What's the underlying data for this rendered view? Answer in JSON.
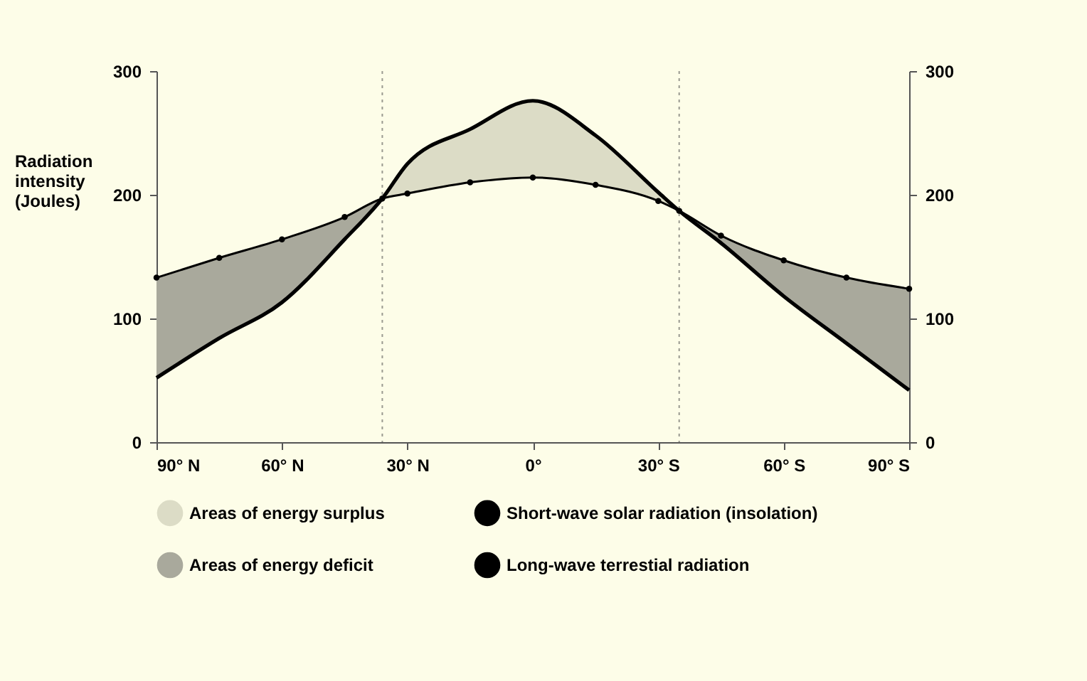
{
  "chart_data": {
    "type": "line",
    "ylabel": "Radiation intensity (Joules)",
    "xlim": [
      90,
      -90
    ],
    "xticks": [
      {
        "value": 90,
        "label": "90° N"
      },
      {
        "value": 60,
        "label": "60° N"
      },
      {
        "value": 30,
        "label": "30° N"
      },
      {
        "value": 0,
        "label": "0°"
      },
      {
        "value": -30,
        "label": "30° S"
      },
      {
        "value": -60,
        "label": "60° S"
      },
      {
        "value": -90,
        "label": "90° S"
      }
    ],
    "ylim": [
      0,
      300
    ],
    "yticks": [
      0,
      100,
      200,
      300
    ],
    "y2lim": [
      0,
      300
    ],
    "y2ticks": [
      0,
      100,
      200,
      300
    ],
    "grid": false,
    "legend": "bottom",
    "ref_lines": [
      {
        "axis": "x",
        "value": 36,
        "color": "#9a9a90",
        "line_style": "dotted"
      },
      {
        "axis": "x",
        "value": -35,
        "color": "#9a9a90",
        "line_style": "dotted"
      }
    ],
    "series": [
      {
        "name": "Areas of energy surplus",
        "type": "area",
        "color": "#dcdcc6",
        "x": [
          36,
          30,
          15,
          0,
          -15,
          -30,
          -35
        ],
        "values": [
          197,
          225,
          253,
          276,
          248,
          202,
          187
        ]
      },
      {
        "name": "Short-wave solar radiation (insolation)",
        "type": "line",
        "color": "#000000",
        "marker": "none",
        "x": [
          90,
          75,
          60,
          45,
          36,
          30,
          15,
          0,
          -15,
          -30,
          -35,
          -45,
          -60,
          -75,
          -90
        ],
        "values": [
          52,
          84,
          113,
          164,
          197,
          225,
          253,
          276,
          248,
          202,
          187,
          161,
          118,
          80,
          42
        ]
      },
      {
        "name": "Areas of energy deficit",
        "type": "area",
        "color": "#a9a99c",
        "x": [
          90,
          75,
          60,
          45,
          36,
          0,
          -35,
          -45,
          -60,
          -75,
          -90
        ],
        "values": [
          133,
          149,
          164,
          182,
          197,
          null,
          187,
          167,
          147,
          133,
          124
        ]
      },
      {
        "name": "Long-wave terrestial radiation",
        "color": "#000000",
        "marker": "circle",
        "x": [
          90,
          75,
          60,
          45,
          36,
          30,
          15,
          0,
          -15,
          -30,
          -35,
          -45,
          -60,
          -75,
          -90
        ],
        "values": [
          133,
          149,
          164,
          182,
          197,
          201,
          210,
          214,
          208,
          195,
          187,
          167,
          147,
          133,
          124
        ]
      }
    ]
  }
}
